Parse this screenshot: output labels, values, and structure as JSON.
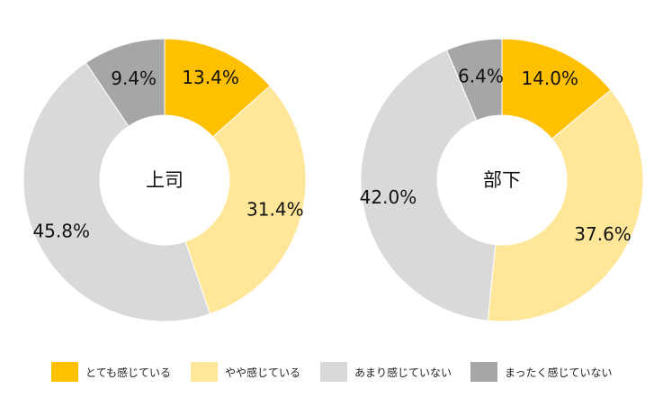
{
  "chart_data": [
    {
      "type": "pie",
      "title": "上司",
      "categories": [
        "とても感じている",
        "やや感じている",
        "あまり感じていない",
        "まったく感じていない"
      ],
      "values": [
        13.4,
        31.4,
        45.8,
        9.4
      ],
      "labels": [
        "13.4%",
        "31.4%",
        "45.8%",
        "9.4%"
      ]
    },
    {
      "type": "pie",
      "title": "部下",
      "categories": [
        "とても感じている",
        "やや感じている",
        "あまり感じていない",
        "まったく感じていない"
      ],
      "values": [
        14.0,
        37.6,
        42.0,
        6.4
      ],
      "labels": [
        "14.0%",
        "37.6%",
        "42.0%",
        "6.4%"
      ]
    }
  ],
  "colors": [
    "#ffc000",
    "#ffe699",
    "#d9d9d9",
    "#a6a6a6"
  ],
  "legend": {
    "items": [
      {
        "label": "とても感じている",
        "color": "#ffc000"
      },
      {
        "label": "やや感じている",
        "color": "#ffe699"
      },
      {
        "label": "あまり感じていない",
        "color": "#d9d9d9"
      },
      {
        "label": "まったく感じていない",
        "color": "#a6a6a6"
      }
    ]
  }
}
